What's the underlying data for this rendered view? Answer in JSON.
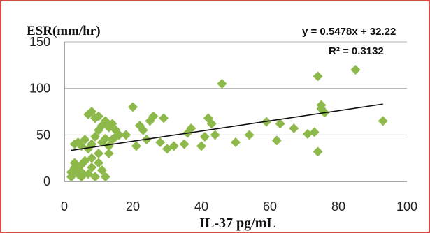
{
  "chart_data": {
    "type": "scatter",
    "ylabel": "ESR(mm/hr)",
    "xlabel": "IL-37 pg/mL",
    "xlim": [
      0,
      100
    ],
    "ylim": [
      0,
      150
    ],
    "xticks": [
      "0",
      "20",
      "40",
      "60",
      "80",
      "100"
    ],
    "yticks": [
      "0",
      "50",
      "100",
      "150"
    ],
    "grid": "horizontal",
    "marker_color": "#8db84a",
    "trendline_color": "#111111",
    "trendline": {
      "slope": 0.5478,
      "intercept": 32.22,
      "x_range": [
        2,
        93
      ]
    },
    "equation_text": "y = 0.5478x + 32.22",
    "r2_text": "R² = 0.3132",
    "points": [
      [
        2,
        5
      ],
      [
        2,
        10
      ],
      [
        3,
        15
      ],
      [
        3,
        20
      ],
      [
        4,
        8
      ],
      [
        4,
        12
      ],
      [
        5,
        5
      ],
      [
        5,
        10
      ],
      [
        5,
        18
      ],
      [
        6,
        22
      ],
      [
        7,
        8
      ],
      [
        8,
        15
      ],
      [
        8,
        25
      ],
      [
        9,
        5
      ],
      [
        10,
        20
      ],
      [
        11,
        12
      ],
      [
        12,
        5
      ],
      [
        13,
        30
      ],
      [
        3,
        40
      ],
      [
        4,
        42
      ],
      [
        5,
        38
      ],
      [
        6,
        45
      ],
      [
        7,
        35
      ],
      [
        8,
        40
      ],
      [
        9,
        48
      ],
      [
        10,
        30
      ],
      [
        11,
        42
      ],
      [
        12,
        46
      ],
      [
        13,
        38
      ],
      [
        15,
        48
      ],
      [
        7,
        72
      ],
      [
        8,
        75
      ],
      [
        9,
        68
      ],
      [
        10,
        70
      ],
      [
        11,
        60
      ],
      [
        12,
        65
      ],
      [
        13,
        58
      ],
      [
        14,
        62
      ],
      [
        15,
        55
      ],
      [
        16,
        50
      ],
      [
        10,
        55
      ],
      [
        14,
        45
      ],
      [
        18,
        50
      ],
      [
        20,
        80
      ],
      [
        21,
        38
      ],
      [
        22,
        60
      ],
      [
        23,
        55
      ],
      [
        24,
        45
      ],
      [
        25,
        65
      ],
      [
        26,
        70
      ],
      [
        28,
        42
      ],
      [
        29,
        68
      ],
      [
        30,
        35
      ],
      [
        32,
        38
      ],
      [
        35,
        40
      ],
      [
        36,
        52
      ],
      [
        37,
        57
      ],
      [
        40,
        38
      ],
      [
        41,
        48
      ],
      [
        42,
        68
      ],
      [
        43,
        62
      ],
      [
        44,
        50
      ],
      [
        46,
        105
      ],
      [
        50,
        42
      ],
      [
        54,
        50
      ],
      [
        59,
        64
      ],
      [
        62,
        44
      ],
      [
        63,
        62
      ],
      [
        67,
        57
      ],
      [
        71,
        51
      ],
      [
        73,
        53
      ],
      [
        74,
        113
      ],
      [
        74,
        32
      ],
      [
        75,
        82
      ],
      [
        75,
        78
      ],
      [
        76,
        74
      ],
      [
        85,
        120
      ],
      [
        93,
        65
      ]
    ]
  }
}
